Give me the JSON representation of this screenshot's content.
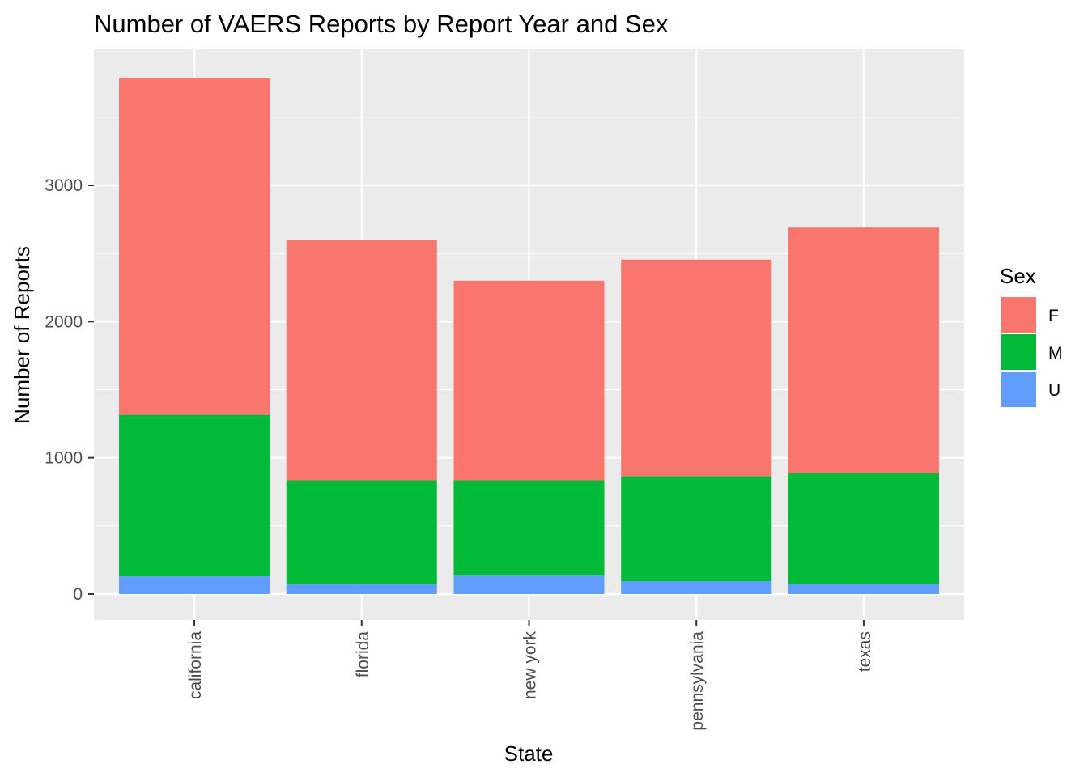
{
  "chart_data": {
    "type": "bar",
    "stacked": true,
    "title": "Number of VAERS Reports by Report Year and Sex",
    "xlabel": "State",
    "ylabel": "Number of Reports",
    "categories": [
      "california",
      "florida",
      "new york",
      "pennsylvania",
      "texas"
    ],
    "series": [
      {
        "name": "U",
        "color": "#619CFF",
        "values": [
          130,
          70,
          135,
          95,
          75
        ]
      },
      {
        "name": "M",
        "color": "#00BA38",
        "values": [
          1185,
          765,
          700,
          770,
          810
        ]
      },
      {
        "name": "F",
        "color": "#F8766D",
        "values": [
          2475,
          1765,
          1465,
          1590,
          1805
        ]
      }
    ],
    "totals": [
      3790,
      2600,
      2300,
      2455,
      2690
    ],
    "ylim": [
      -180,
      3990
    ],
    "yticks": [
      0,
      1000,
      2000,
      3000
    ],
    "ytick_labels": [
      "0",
      "1000",
      "2000",
      "3000"
    ],
    "grid": true,
    "panel_background": "#EBEBEB",
    "x_tick_label_rotation": "vertical",
    "legend": {
      "title": "Sex",
      "position": "right",
      "entries": [
        "F",
        "M",
        "U"
      ]
    }
  }
}
